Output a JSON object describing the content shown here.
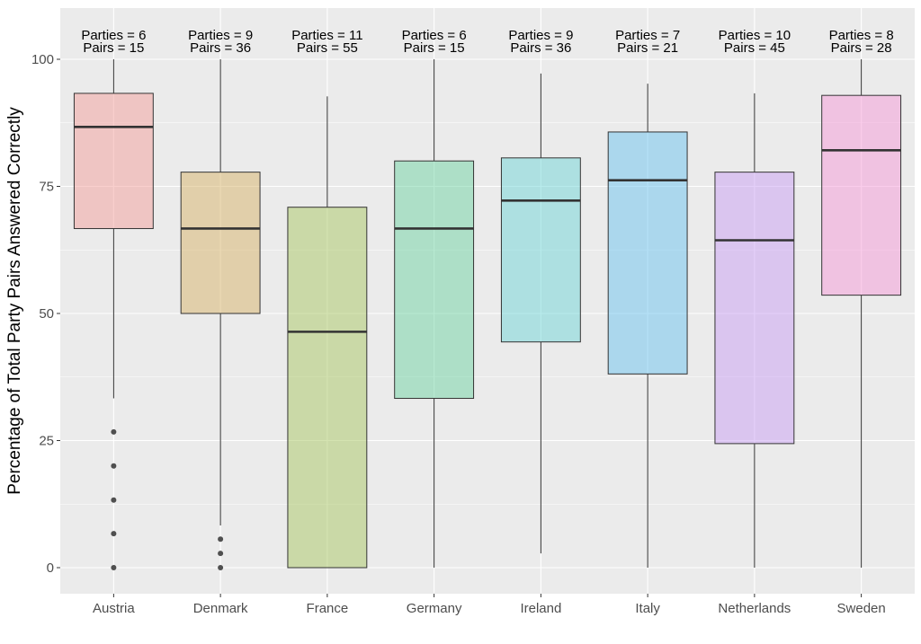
{
  "chart_data": {
    "type": "box",
    "title": "",
    "xlabel": "",
    "ylabel": "Percentage of Total Party Pairs Answered Correctly",
    "ylim": [
      -5,
      105
    ],
    "yticks": [
      0,
      25,
      50,
      75,
      100
    ],
    "grid": true,
    "categories": [
      "Austria",
      "Denmark",
      "France",
      "Germany",
      "Ireland",
      "Italy",
      "Netherlands",
      "Sweden"
    ],
    "colors": [
      "#f4a09b",
      "#d8b46a",
      "#a9c764",
      "#6fd4a3",
      "#6fd6d8",
      "#6cc3f0",
      "#c9a0f4",
      "#f59ad7"
    ],
    "boxes": [
      {
        "name": "Austria",
        "parties_label": "Parties = 6",
        "pairs_label": "Pairs = 15",
        "min": 33.3,
        "q1": 66.7,
        "median": 86.7,
        "q3": 93.3,
        "max": 100,
        "outliers": [
          26.7,
          20,
          13.3,
          6.7,
          0
        ]
      },
      {
        "name": "Denmark",
        "parties_label": "Parties = 9",
        "pairs_label": "Pairs = 36",
        "min": 8.3,
        "q1": 50,
        "median": 66.7,
        "q3": 77.8,
        "max": 100,
        "outliers": [
          5.6,
          2.8,
          0
        ]
      },
      {
        "name": "France",
        "parties_label": "Parties = 11",
        "pairs_label": "Pairs = 55",
        "min": 0,
        "q1": 0,
        "median": 46.4,
        "q3": 70.9,
        "max": 92.7,
        "outliers": []
      },
      {
        "name": "Germany",
        "parties_label": "Parties = 6",
        "pairs_label": "Pairs = 15",
        "min": 0,
        "q1": 33.3,
        "median": 66.7,
        "q3": 80,
        "max": 100,
        "outliers": []
      },
      {
        "name": "Ireland",
        "parties_label": "Parties = 9",
        "pairs_label": "Pairs = 36",
        "min": 2.8,
        "q1": 44.4,
        "median": 72.2,
        "q3": 80.6,
        "max": 97.2,
        "outliers": []
      },
      {
        "name": "Italy",
        "parties_label": "Parties = 7",
        "pairs_label": "Pairs = 21",
        "min": 0,
        "q1": 38.1,
        "median": 76.2,
        "q3": 85.7,
        "max": 95.2,
        "outliers": []
      },
      {
        "name": "Netherlands",
        "parties_label": "Parties = 10",
        "pairs_label": "Pairs = 45",
        "min": 0,
        "q1": 24.4,
        "median": 64.4,
        "q3": 77.8,
        "max": 93.3,
        "outliers": []
      },
      {
        "name": "Sweden",
        "parties_label": "Parties = 8",
        "pairs_label": "Pairs = 28",
        "min": 0,
        "q1": 53.6,
        "median": 82.1,
        "q3": 92.9,
        "max": 100,
        "outliers": []
      }
    ]
  }
}
